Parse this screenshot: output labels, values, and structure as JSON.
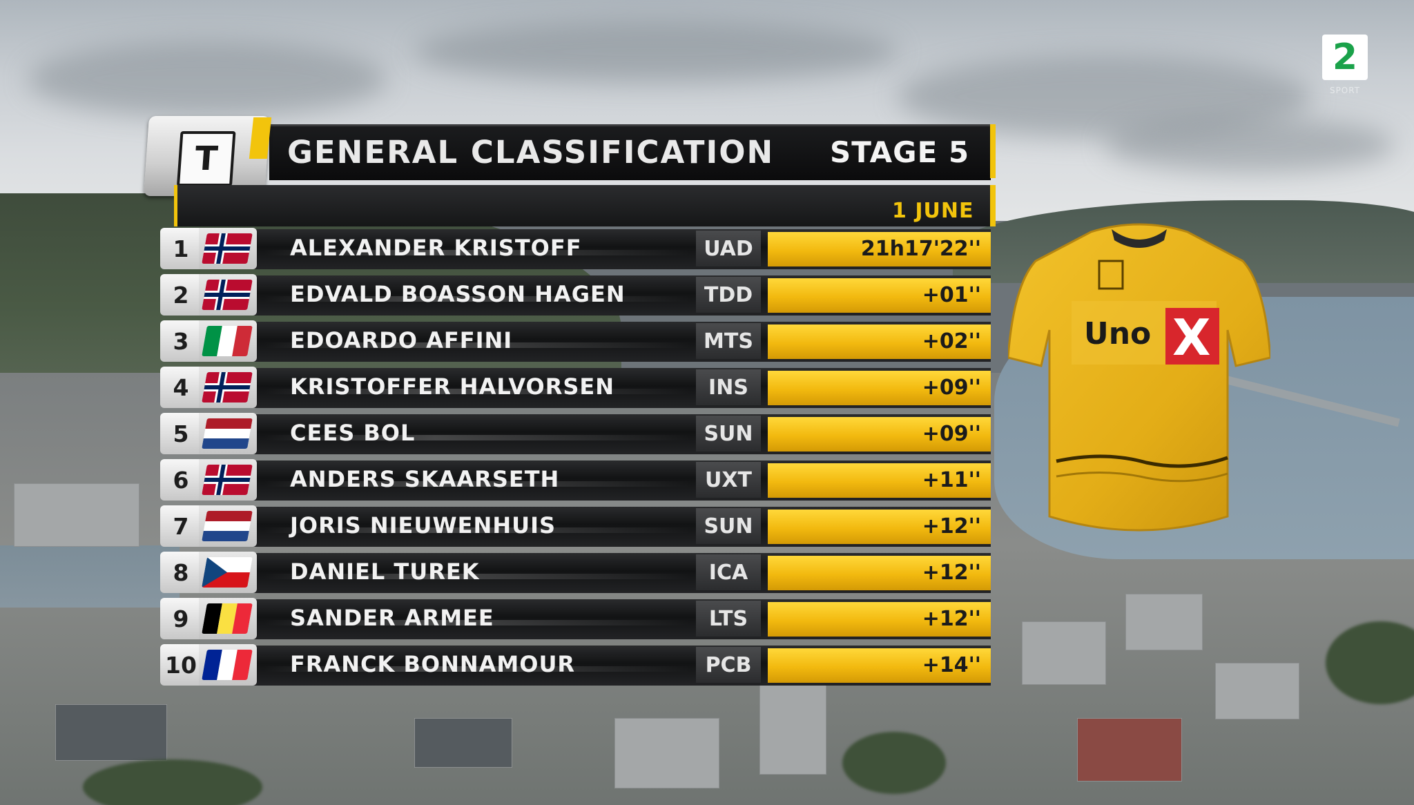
{
  "broadcaster": {
    "logo_glyph": "2",
    "sub": "SPORT"
  },
  "graphic": {
    "logo_glyph": "T",
    "title": "GENERAL CLASSIFICATION",
    "stage": "STAGE 5",
    "date": "1 JUNE",
    "accent_color": "#f2c40c"
  },
  "standings": [
    {
      "pos": "1",
      "name": "ALEXANDER KRISTOFF",
      "team": "UAD",
      "time": "21h17'22''",
      "flag": "nor"
    },
    {
      "pos": "2",
      "name": "EDVALD BOASSON HAGEN",
      "team": "TDD",
      "time": "+01''",
      "flag": "nor"
    },
    {
      "pos": "3",
      "name": "EDOARDO AFFINI",
      "team": "MTS",
      "time": "+02''",
      "flag": "ita"
    },
    {
      "pos": "4",
      "name": "KRISTOFFER HALVORSEN",
      "team": "INS",
      "time": "+09''",
      "flag": "nor"
    },
    {
      "pos": "5",
      "name": "CEES BOL",
      "team": "SUN",
      "time": "+09''",
      "flag": "ned"
    },
    {
      "pos": "6",
      "name": "ANDERS SKAARSETH",
      "team": "UXT",
      "time": "+11''",
      "flag": "nor"
    },
    {
      "pos": "7",
      "name": "JORIS NIEUWENHUIS",
      "team": "SUN",
      "time": "+12''",
      "flag": "ned"
    },
    {
      "pos": "8",
      "name": "DANIEL TUREK",
      "team": "ICA",
      "time": "+12''",
      "flag": "cze"
    },
    {
      "pos": "9",
      "name": "SANDER ARMEE",
      "team": "LTS",
      "time": "+12''",
      "flag": "bel"
    },
    {
      "pos": "10",
      "name": "FRANCK BONNAMOUR",
      "team": "PCB",
      "time": "+14''",
      "flag": "fra"
    }
  ],
  "jersey": {
    "sponsor_text": "Uno",
    "sponsor_mark": "X",
    "color": "#e8b51c"
  }
}
